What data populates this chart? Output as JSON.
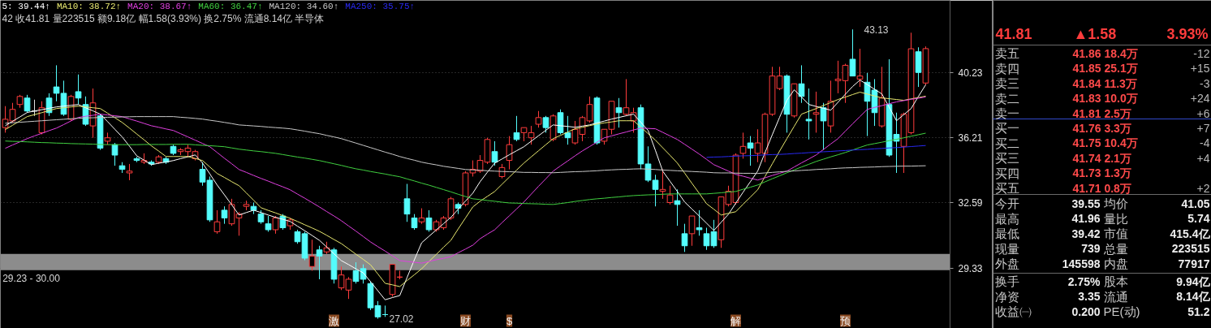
{
  "chart_data": [
    {
      "type": "candlestick",
      "subtitle": "42 收41.81 量223515 额9.18亿 幅1.58(3.93%) 换2.75% 流通8.14亿 半导体",
      "categories": [
        null,
        null,
        null,
        null,
        null,
        null,
        null,
        null,
        null,
        null,
        null,
        null,
        null,
        null,
        null,
        null,
        null,
        null,
        null,
        null,
        null,
        null,
        null,
        null,
        null,
        null,
        null,
        null,
        null,
        null,
        null,
        null,
        null,
        null,
        null,
        null,
        null,
        null,
        null,
        null,
        null,
        null,
        null,
        null,
        null,
        "激",
        null,
        null,
        null,
        null,
        null,
        null,
        null,
        null,
        null,
        null,
        null,
        null,
        null,
        null,
        null,
        null,
        null,
        "财",
        null,
        null,
        null,
        null,
        null,
        "$",
        null,
        null,
        null,
        null,
        null,
        null,
        null,
        null,
        null,
        null,
        null,
        null,
        null,
        null,
        null,
        null,
        null,
        null,
        null,
        null,
        null,
        null,
        null,
        null,
        null,
        null,
        null,
        null,
        null,
        null,
        "解",
        null,
        null,
        null,
        null,
        null,
        null,
        null,
        null,
        null,
        null,
        null,
        null,
        null,
        null,
        "预",
        null,
        null,
        null,
        null,
        null,
        null,
        null,
        null,
        null,
        null,
        null
      ],
      "ohlc": [
        [
          36.8,
          38.1,
          36.5,
          37.3
        ],
        [
          37.2,
          38.3,
          37.1,
          37.9
        ],
        [
          38.2,
          38.8,
          38.0,
          38.7
        ],
        [
          38.6,
          38.8,
          37.7,
          37.8
        ],
        [
          37.8,
          38.5,
          37.5,
          37.8
        ],
        [
          36.5,
          38.4,
          36.4,
          38.0
        ],
        [
          38.6,
          38.9,
          37.5,
          37.7
        ],
        [
          39.3,
          40.7,
          38.4,
          38.9
        ],
        [
          38.9,
          39.7,
          37.5,
          37.6
        ],
        [
          37.3,
          38.8,
          37.2,
          38.7
        ],
        [
          39.0,
          40.1,
          38.2,
          38.6
        ],
        [
          38.2,
          38.7,
          36.9,
          37.0
        ],
        [
          36.9,
          39.2,
          36.2,
          38.3
        ],
        [
          37.5,
          37.6,
          35.5,
          35.6
        ],
        [
          36.0,
          36.5,
          35.8,
          36.2
        ],
        [
          35.8,
          35.9,
          34.6,
          35.2
        ],
        [
          34.6,
          34.8,
          34.2,
          34.4
        ],
        [
          34.2,
          34.7,
          33.8,
          34.3
        ],
        [
          35.0,
          35.1,
          34.8,
          34.9
        ],
        [
          34.8,
          35.3,
          34.7,
          34.9
        ],
        [
          34.8,
          34.9,
          34.6,
          34.7
        ],
        [
          34.8,
          35.2,
          34.7,
          35.1
        ],
        [
          35.0,
          35.1,
          34.7,
          34.8
        ],
        [
          35.7,
          35.8,
          35.2,
          35.3
        ],
        [
          35.4,
          35.6,
          35.2,
          35.5
        ],
        [
          35.4,
          35.8,
          35.1,
          35.6
        ],
        [
          35.0,
          35.5,
          34.9,
          35.4
        ],
        [
          34.4,
          34.8,
          33.5,
          33.7
        ],
        [
          33.8,
          34.0,
          31.6,
          31.7
        ],
        [
          31.1,
          32.2,
          31.0,
          31.6
        ],
        [
          32.2,
          32.4,
          31.5,
          31.8
        ],
        [
          31.5,
          32.8,
          31.4,
          32.5
        ],
        [
          31.8,
          32.1,
          30.9,
          32.0
        ],
        [
          32.4,
          32.7,
          32.2,
          32.5
        ],
        [
          32.4,
          32.6,
          32.0,
          32.2
        ],
        [
          32.0,
          32.2,
          31.5,
          31.6
        ],
        [
          31.5,
          31.9,
          31.1,
          31.2
        ],
        [
          31.2,
          31.9,
          31.0,
          31.8
        ],
        [
          31.9,
          32.0,
          31.2,
          31.3
        ],
        [
          31.4,
          31.8,
          31.2,
          31.7
        ],
        [
          31.1,
          31.2,
          30.5,
          30.6
        ],
        [
          31.0,
          31.1,
          29.7,
          29.8
        ],
        [
          29.4,
          30.7,
          29.2,
          29.9
        ],
        [
          30.2,
          30.4,
          28.8,
          29.9
        ],
        [
          30.1,
          30.6,
          30.0,
          30.3
        ],
        [
          30.2,
          30.3,
          28.6,
          28.8
        ],
        [
          28.4,
          29.4,
          28.3,
          29.0
        ],
        [
          28.3,
          28.9,
          27.9,
          28.8
        ],
        [
          29.2,
          29.6,
          28.6,
          28.7
        ],
        [
          29.3,
          29.5,
          28.6,
          28.8
        ],
        [
          28.6,
          28.7,
          27.4,
          27.5
        ],
        [
          27.6,
          27.8,
          27.02,
          27.1
        ],
        [
          27.2,
          27.6,
          27.1,
          27.2
        ],
        [
          28.1,
          29.5,
          28.0,
          29.5
        ],
        [
          28.9,
          29.2,
          28.8,
          28.9
        ],
        [
          32.8,
          33.6,
          31.6,
          32.0
        ],
        [
          31.8,
          32.0,
          31.2,
          31.3
        ],
        [
          31.6,
          32.3,
          31.5,
          31.8
        ],
        [
          31.8,
          32.2,
          31.1,
          31.2
        ],
        [
          31.2,
          31.7,
          31.1,
          31.6
        ],
        [
          31.3,
          31.9,
          31.2,
          31.8
        ],
        [
          31.8,
          32.9,
          31.7,
          32.8
        ],
        [
          32.5,
          32.6,
          32.0,
          32.3
        ],
        [
          32.5,
          34.3,
          32.4,
          34.2
        ],
        [
          34.2,
          34.9,
          34.0,
          34.4
        ],
        [
          34.3,
          35.2,
          34.2,
          34.9
        ],
        [
          34.8,
          36.2,
          34.7,
          36.1
        ],
        [
          35.4,
          36.0,
          34.6,
          34.8
        ],
        [
          34.0,
          34.7,
          33.9,
          34.5
        ],
        [
          34.9,
          36.3,
          34.4,
          35.8
        ],
        [
          36.5,
          37.5,
          36.0,
          36.1
        ],
        [
          36.5,
          36.8,
          36.0,
          36.8
        ],
        [
          36.2,
          36.9,
          35.8,
          36.5
        ],
        [
          37.0,
          37.8,
          36.8,
          37.4
        ],
        [
          37.4,
          37.5,
          36.5,
          36.8
        ],
        [
          36.1,
          37.6,
          36.0,
          37.5
        ],
        [
          37.7,
          37.9,
          36.4,
          36.5
        ],
        [
          36.5,
          37.5,
          35.8,
          36.2
        ],
        [
          35.9,
          37.2,
          35.8,
          36.7
        ],
        [
          36.4,
          37.5,
          36.0,
          37.4
        ],
        [
          37.2,
          38.7,
          37.1,
          38.2
        ],
        [
          38.6,
          38.7,
          35.8,
          35.9
        ],
        [
          36.0,
          36.7,
          35.8,
          36.7
        ],
        [
          36.7,
          38.4,
          36.4,
          38.4
        ],
        [
          38.0,
          38.6,
          36.8,
          37.7
        ],
        [
          37.6,
          39.8,
          37.5,
          38.0
        ],
        [
          37.2,
          38.0,
          36.5,
          37.7
        ],
        [
          38.0,
          38.2,
          34.4,
          34.7
        ],
        [
          34.7,
          35.7,
          33.7,
          33.8
        ],
        [
          33.8,
          34.1,
          32.4,
          33.3
        ],
        [
          33.2,
          34.4,
          32.8,
          33.3
        ],
        [
          32.6,
          33.5,
          32.5,
          33.0
        ],
        [
          32.7,
          33.3,
          31.4,
          32.5
        ],
        [
          31.0,
          31.5,
          30.1,
          30.4
        ],
        [
          31.0,
          31.9,
          30.4,
          31.9
        ],
        [
          31.3,
          32.2,
          30.9,
          31.2
        ],
        [
          31.0,
          31.3,
          30.2,
          30.4
        ],
        [
          31.1,
          31.7,
          30.3,
          30.4
        ],
        [
          30.7,
          32.9,
          30.3,
          32.9
        ],
        [
          32.5,
          33.5,
          32.4,
          33.2
        ],
        [
          32.6,
          35.3,
          32.5,
          35.2
        ],
        [
          35.3,
          36.5,
          35.0,
          35.7
        ],
        [
          35.9,
          36.3,
          34.6,
          35.6
        ],
        [
          35.3,
          36.7,
          34.8,
          35.9
        ],
        [
          35.3,
          37.7,
          34.8,
          37.6
        ],
        [
          37.6,
          40.6,
          37.5,
          40.0
        ],
        [
          39.2,
          40.6,
          39.1,
          40.0
        ],
        [
          40.0,
          40.1,
          36.5,
          37.6
        ],
        [
          37.5,
          39.5,
          37.4,
          39.5
        ],
        [
          39.5,
          40.7,
          38.3,
          38.7
        ],
        [
          37.3,
          39.2,
          36.1,
          37.2
        ],
        [
          37.6,
          39.0,
          36.5,
          37.7
        ],
        [
          38.0,
          38.3,
          35.5,
          37.2
        ],
        [
          36.9,
          39.7,
          36.5,
          38.4
        ],
        [
          39.7,
          41.0,
          38.9,
          39.8
        ],
        [
          39.7,
          40.8,
          38.3,
          40.7
        ],
        [
          41.1,
          43.13,
          40.0,
          40.0
        ],
        [
          39.8,
          41.8,
          39.3,
          40.0
        ],
        [
          39.6,
          40.2,
          36.3,
          38.4
        ],
        [
          39.1,
          39.8,
          36.9,
          37.7
        ],
        [
          36.9,
          40.6,
          36.8,
          38.6
        ],
        [
          38.2,
          41.1,
          35.1,
          35.2
        ],
        [
          36.4,
          37.7,
          34.2,
          36.0
        ],
        [
          35.7,
          37.7,
          34.2,
          37.6
        ],
        [
          36.5,
          42.9,
          36.4,
          41.8
        ],
        [
          41.6,
          41.9,
          39.3,
          40.23
        ],
        [
          39.55,
          41.96,
          39.42,
          41.81
        ]
      ],
      "colors": [
        "#ff3c3c",
        "#ff3c3c",
        "#ff3c3c",
        "#54fcfc",
        "#e0e0e0",
        "#ff3c3c",
        "#54fcfc",
        "#54fcfc",
        "#54fcfc",
        "#ff3c3c",
        "#54fcfc",
        "#54fcfc",
        "#ff3c3c",
        "#54fcfc",
        "#ff3c3c",
        "#54fcfc",
        "#54fcfc",
        "#ff3c3c",
        "#54fcfc",
        "#ff3c3c",
        "#54fcfc",
        "#ff3c3c",
        "#54fcfc",
        "#54fcfc",
        "#ff3c3c",
        "#ff3c3c",
        "#ff3c3c",
        "#54fcfc",
        "#54fcfc",
        "#ff3c3c",
        "#54fcfc",
        "#ff3c3c",
        "#ff3c3c",
        "#ff3c3c",
        "#54fcfc",
        "#54fcfc",
        "#54fcfc",
        "#ff3c3c",
        "#54fcfc",
        "#ff3c3c",
        "#54fcfc",
        "#54fcfc",
        "#ff3c3c",
        "#54fcfc",
        "#ff3c3c",
        "#54fcfc",
        "#ff3c3c",
        "#ff3c3c",
        "#54fcfc",
        "#54fcfc",
        "#54fcfc",
        "#54fcfc",
        "#54fcfc",
        "#ff3c3c",
        "#ff3c3c",
        "#54fcfc",
        "#54fcfc",
        "#ff3c3c",
        "#54fcfc",
        "#ff3c3c",
        "#ff3c3c",
        "#ff3c3c",
        "#54fcfc",
        "#ff3c3c",
        "#ff3c3c",
        "#ff3c3c",
        "#ff3c3c",
        "#54fcfc",
        "#ff3c3c",
        "#ff3c3c",
        "#54fcfc",
        "#ff3c3c",
        "#ff3c3c",
        "#ff3c3c",
        "#54fcfc",
        "#ff3c3c",
        "#54fcfc",
        "#54fcfc",
        "#ff3c3c",
        "#ff3c3c",
        "#ff3c3c",
        "#54fcfc",
        "#ff3c3c",
        "#ff3c3c",
        "#54fcfc",
        "#ff3c3c",
        "#ff3c3c",
        "#54fcfc",
        "#54fcfc",
        "#54fcfc",
        "#ff3c3c",
        "#ff3c3c",
        "#54fcfc",
        "#54fcfc",
        "#ff3c3c",
        "#54fcfc",
        "#54fcfc",
        "#54fcfc",
        "#ff3c3c",
        "#ff3c3c",
        "#ff3c3c",
        "#ff3c3c",
        "#54fcfc",
        "#ff3c3c",
        "#ff3c3c",
        "#ff3c3c",
        "#ff3c3c",
        "#54fcfc",
        "#ff3c3c",
        "#54fcfc",
        "#54fcfc",
        "#ff3c3c",
        "#54fcfc",
        "#ff3c3c",
        "#ff3c3c",
        "#ff3c3c",
        "#54fcfc",
        "#ff3c3c",
        "#54fcfc",
        "#54fcfc",
        "#ff3c3c",
        "#54fcfc",
        "#54fcfc",
        "#ff3c3c",
        "#ff3c3c",
        "#54fcfc",
        "#ff3c3c"
      ],
      "series": [
        {
          "name": "5: 39.44↑",
          "type": "line",
          "color": "#ffffff",
          "values": [
            36.91,
            37.18,
            37.44,
            37.71,
            37.8,
            37.88,
            37.97,
            38.05,
            38.1,
            38.15,
            38.2,
            38.0,
            37.81,
            37.61,
            37.16,
            36.7,
            36.25,
            35.71,
            35.16,
            34.91,
            34.66,
            34.74,
            34.81,
            34.89,
            35.0,
            35.1,
            35.21,
            34.75,
            34.15,
            33.54,
            33.01,
            32.48,
            31.95,
            32.08,
            32.2,
            32.08,
            31.95,
            31.83,
            31.73,
            31.62,
            31.38,
            31.15,
            30.91,
            30.67,
            30.34,
            30.01,
            29.68,
            29.49,
            29.29,
            29.1,
            28.69,
            28.27,
            27.86,
            27.96,
            28.05,
            28.88,
            29.72,
            30.55,
            30.87,
            31.19,
            31.51,
            31.83,
            32.25,
            32.68,
            33.1,
            33.72,
            34.24,
            34.75,
            34.98,
            35.22,
            35.45,
            35.68,
            36.0,
            36.32,
            36.64,
            36.96,
            36.91,
            36.87,
            36.82,
            36.89,
            36.96,
            37.08,
            37.19,
            37.31,
            37.41,
            37.51,
            37.61,
            37.12,
            36.63,
            35.47,
            34.3,
            33.74,
            33.19,
            32.63,
            32.26,
            31.9,
            31.53,
            31.16,
            31.58,
            31.99,
            32.57,
            33.15,
            33.72,
            34.3,
            35.34,
            36.38,
            37.42,
            38.46,
            39.12,
            38.66,
            38.2,
            38.08,
            37.97,
            37.85,
            38.34,
            38.84,
            39.33,
            39.74,
            39.45,
            39.15,
            38.86,
            38.04,
            37.21,
            37.58,
            37.95,
            38.7,
            39.44
          ]
        },
        {
          "name": "MA10: 38.72↑",
          "type": "line",
          "color": "#e8e870",
          "values": [
            36.68,
            36.94,
            37.2,
            37.46,
            37.58,
            37.7,
            37.83,
            37.95,
            38.0,
            38.05,
            38.1,
            38.05,
            38.0,
            37.95,
            37.67,
            37.39,
            37.11,
            36.77,
            36.42,
            36.08,
            35.73,
            35.43,
            35.12,
            35.12,
            35.12,
            35.12,
            35.01,
            34.89,
            34.53,
            34.17,
            33.95,
            33.72,
            33.5,
            33.11,
            32.72,
            32.33,
            32.19,
            32.06,
            31.92,
            31.78,
            31.62,
            31.45,
            31.29,
            31.12,
            30.92,
            30.71,
            30.51,
            30.25,
            29.99,
            29.74,
            29.48,
            29.05,
            28.61,
            28.54,
            28.46,
            28.74,
            29.01,
            29.29,
            29.64,
            29.98,
            30.33,
            30.67,
            31.24,
            31.8,
            32.37,
            32.67,
            32.93,
            33.19,
            33.58,
            33.97,
            34.36,
            34.75,
            35.1,
            35.45,
            35.8,
            36.15,
            36.34,
            36.54,
            36.73,
            36.82,
            36.92,
            37.01,
            37.08,
            37.14,
            37.21,
            37.21,
            37.21,
            36.83,
            36.44,
            36.06,
            35.62,
            35.19,
            34.75,
            34.19,
            33.63,
            33.09,
            32.54,
            32.25,
            31.95,
            32.04,
            32.12,
            32.51,
            32.89,
            33.28,
            34.0,
            34.71,
            35.43,
            36.15,
            36.88,
            37.61,
            37.78,
            37.95,
            38.14,
            38.32,
            38.51,
            38.66,
            38.82,
            38.97,
            38.85,
            38.73,
            38.61,
            38.56,
            38.51,
            38.46,
            38.55,
            38.63,
            38.72
          ]
        },
        {
          "name": "MA20: 38.67↑",
          "type": "line",
          "color": "#e040e0",
          "values": [
            35.59,
            35.78,
            35.96,
            36.15,
            36.31,
            36.46,
            36.62,
            36.77,
            36.98,
            37.2,
            37.41,
            37.48,
            37.54,
            37.61,
            37.56,
            37.51,
            37.46,
            37.32,
            37.19,
            37.05,
            36.91,
            36.82,
            36.72,
            36.63,
            36.44,
            36.25,
            36.06,
            35.87,
            35.68,
            35.35,
            35.02,
            34.71,
            34.39,
            34.23,
            34.06,
            33.9,
            33.75,
            33.59,
            33.44,
            33.28,
            33.05,
            32.83,
            32.6,
            32.37,
            32.13,
            31.9,
            31.66,
            31.39,
            31.13,
            30.86,
            30.59,
            30.36,
            30.14,
            29.91,
            29.68,
            29.64,
            29.6,
            29.56,
            29.64,
            29.72,
            29.79,
            29.87,
            30.06,
            30.24,
            30.43,
            30.75,
            30.98,
            31.2,
            31.56,
            31.91,
            32.27,
            32.63,
            33.05,
            33.47,
            33.88,
            34.3,
            34.59,
            34.87,
            35.16,
            35.44,
            35.69,
            35.95,
            36.2,
            36.31,
            36.43,
            36.54,
            36.66,
            36.77,
            36.75,
            36.73,
            36.52,
            36.31,
            36.1,
            35.82,
            35.54,
            35.26,
            34.96,
            34.66,
            34.48,
            34.3,
            34.12,
            34.02,
            33.91,
            33.81,
            33.93,
            34.06,
            34.18,
            34.3,
            34.53,
            34.76,
            34.98,
            35.21,
            35.52,
            35.84,
            36.15,
            36.59,
            37.03,
            37.46,
            37.9,
            38.02,
            38.13,
            38.25,
            38.36,
            38.44,
            38.52,
            38.59,
            38.67
          ]
        },
        {
          "name": "MA60: 36.47↑",
          "type": "line",
          "color": "#40d040",
          "values": [
            36.01,
            35.99,
            35.98,
            35.96,
            35.94,
            35.92,
            35.91,
            35.89,
            35.88,
            35.86,
            35.85,
            35.84,
            35.83,
            35.81,
            35.8,
            35.8,
            35.8,
            35.8,
            35.8,
            35.81,
            35.81,
            35.81,
            35.81,
            35.82,
            35.82,
            35.82,
            35.79,
            35.76,
            35.74,
            35.71,
            35.68,
            35.61,
            35.54,
            35.49,
            35.44,
            35.4,
            35.35,
            35.3,
            35.23,
            35.16,
            35.09,
            35.03,
            34.96,
            34.89,
            34.8,
            34.71,
            34.62,
            34.52,
            34.43,
            34.36,
            34.28,
            34.21,
            34.14,
            34.06,
            33.99,
            33.87,
            33.76,
            33.64,
            33.53,
            33.41,
            33.29,
            33.17,
            33.04,
            32.92,
            32.8,
            32.76,
            32.71,
            32.67,
            32.62,
            32.58,
            32.57,
            32.55,
            32.54,
            32.53,
            32.51,
            32.5,
            32.55,
            32.6,
            32.66,
            32.71,
            32.76,
            32.8,
            32.83,
            32.87,
            32.9,
            32.94,
            32.97,
            32.99,
            33.01,
            33.02,
            33.04,
            33.06,
            33.06,
            33.06,
            33.06,
            33.06,
            33.06,
            33.09,
            33.12,
            33.16,
            33.19,
            33.31,
            33.42,
            33.54,
            33.71,
            33.88,
            34.04,
            34.21,
            34.37,
            34.53,
            34.68,
            34.84,
            34.97,
            35.1,
            35.22,
            35.35,
            35.49,
            35.64,
            35.78,
            35.86,
            35.94,
            36.03,
            36.11,
            36.2,
            36.29,
            36.38,
            36.47
          ]
        },
        {
          "name": "MA120: 34.60↑",
          "type": "line",
          "color": "#c8c8c8",
          "values": [
            37.06,
            37.09,
            37.12,
            37.15,
            37.18,
            37.21,
            37.24,
            37.27,
            37.3,
            37.33,
            37.36,
            37.38,
            37.39,
            37.41,
            37.42,
            37.43,
            37.44,
            37.45,
            37.46,
            37.46,
            37.46,
            37.46,
            37.46,
            37.46,
            37.42,
            37.39,
            37.35,
            37.31,
            37.24,
            37.18,
            37.11,
            37.04,
            36.96,
            36.93,
            36.9,
            36.87,
            36.83,
            36.8,
            36.77,
            36.73,
            36.66,
            36.59,
            36.51,
            36.44,
            36.34,
            36.25,
            36.15,
            36.02,
            35.89,
            35.76,
            35.63,
            35.5,
            35.37,
            35.25,
            35.12,
            35.01,
            34.91,
            34.8,
            34.72,
            34.65,
            34.57,
            34.51,
            34.45,
            34.39,
            34.37,
            34.35,
            34.32,
            34.3,
            34.28,
            34.27,
            34.25,
            34.23,
            34.23,
            34.22,
            34.22,
            34.21,
            34.23,
            34.25,
            34.27,
            34.28,
            34.3,
            34.32,
            34.35,
            34.37,
            34.39,
            34.4,
            34.42,
            34.43,
            34.41,
            34.39,
            34.36,
            34.34,
            34.32,
            34.3,
            34.28,
            34.26,
            34.24,
            34.21,
            34.2,
            34.2,
            34.19,
            34.18,
            34.18,
            34.17,
            34.2,
            34.23,
            34.26,
            34.29,
            34.31,
            34.34,
            34.36,
            34.39,
            34.41,
            34.43,
            34.46,
            34.48,
            34.49,
            34.51,
            34.52,
            34.53,
            34.55,
            34.56,
            34.57,
            34.58,
            34.58,
            34.59,
            34.6
          ]
        },
        {
          "name": "MA250: 35.75↑",
          "type": "line",
          "color": "#2828f0",
          "values": [
            null,
            null,
            null,
            null,
            null,
            null,
            null,
            null,
            null,
            null,
            null,
            null,
            null,
            null,
            null,
            null,
            null,
            null,
            null,
            null,
            null,
            null,
            null,
            null,
            null,
            null,
            null,
            null,
            null,
            null,
            null,
            null,
            null,
            null,
            null,
            null,
            null,
            null,
            null,
            null,
            null,
            null,
            null,
            null,
            null,
            null,
            null,
            null,
            null,
            null,
            null,
            null,
            null,
            null,
            null,
            null,
            null,
            null,
            null,
            null,
            null,
            null,
            null,
            null,
            null,
            null,
            null,
            null,
            null,
            null,
            null,
            null,
            null,
            null,
            null,
            null,
            null,
            null,
            null,
            null,
            null,
            null,
            null,
            null,
            null,
            null,
            null,
            null,
            null,
            null,
            null,
            null,
            null,
            null,
            null,
            null,
            35.07,
            35.09,
            35.1,
            35.12,
            35.14,
            35.16,
            35.17,
            35.19,
            35.21,
            35.23,
            35.24,
            35.26,
            35.29,
            35.31,
            35.34,
            35.36,
            35.39,
            35.41,
            35.44,
            35.46,
            35.49,
            35.51,
            35.53,
            35.56,
            35.58,
            35.61,
            35.63,
            35.66,
            35.69,
            35.72,
            35.75
          ]
        }
      ],
      "ylim": [
        26.6,
        45.2
      ],
      "yticks": [
        29.33,
        32.59,
        36.21,
        40.23
      ],
      "log": true,
      "grid": "y",
      "legend": "top left",
      "bands": [
        {
          "axis": "y",
          "from": 29.23,
          "to": 30.0,
          "label": "29.23 - 30.00",
          "color": "#8c8c8c"
        }
      ],
      "annotations": [
        "43.13",
        "27.02"
      ]
    },
    {
      "type": "other",
      "annotations": [
        "41.81",
        "▲1.58",
        "3.93%",
        "卖五",
        "41.86 18.4万",
        "-12",
        "卖四",
        "41.85 25.1万",
        "+15",
        "卖三",
        "41.84 11.3万",
        "-3",
        "卖二",
        "41.83 10.0万",
        "+24",
        "卖一",
        "41.81 2.5万",
        "+6",
        "买一",
        "41.76 3.3万",
        "+7",
        "买二",
        "41.75 10.4万",
        "-4",
        "买三",
        "41.74 2.1万",
        "+4",
        "买四",
        "41.73 1.3万",
        null,
        "买五",
        "41.71 0.8万",
        "+2",
        "今开",
        "39.55",
        "均价",
        "41.05",
        "最高",
        "41.96",
        "量比",
        "5.74",
        "最低",
        "39.42",
        "市值",
        "415.4亿",
        "现量",
        "739",
        "总量",
        "223515",
        "外盘",
        "145598",
        "内盘",
        "77917",
        "换手",
        "2.75%",
        "股本",
        "9.94亿",
        "净资",
        "3.35",
        "流通",
        "8.14亿",
        "收益㈠",
        "0.200",
        "PE(动)",
        "51.2"
      ]
    }
  ]
}
